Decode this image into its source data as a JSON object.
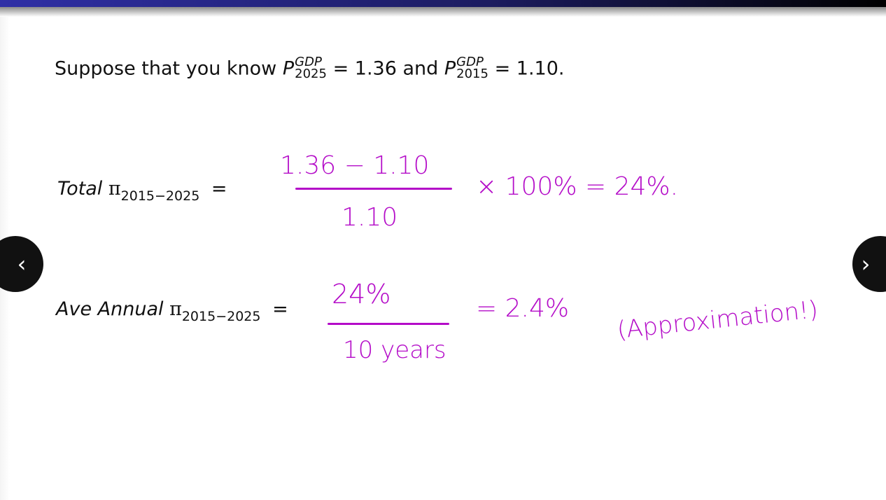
{
  "slide": {
    "intro": {
      "text": "Suppose that you know",
      "p": "P",
      "sup": "GDP",
      "sub1": "2025",
      "eq1": "= 1.36 and",
      "sub2": "2015",
      "eq2": "= 1.10."
    },
    "total": {
      "label": "Total",
      "pi": "π",
      "sub": "2015−2025",
      "eq": "="
    },
    "annual": {
      "label": "Ave Annual",
      "pi": "π",
      "sub": "2015−2025",
      "eq": "="
    }
  },
  "ink": {
    "color": "#b40cc8",
    "total_numerator": "1.36 − 1.10",
    "total_denominator": "1.10",
    "total_rest": "× 100% = 24%.",
    "annual_numerator": "24%",
    "annual_denominator": "10 years",
    "annual_rest": "= 2.4%",
    "note": "(Approximation!)"
  },
  "nav": {
    "prev_icon": "chevron-left-icon",
    "next_icon": "chevron-right-icon",
    "prev": "‹",
    "next": "›"
  }
}
